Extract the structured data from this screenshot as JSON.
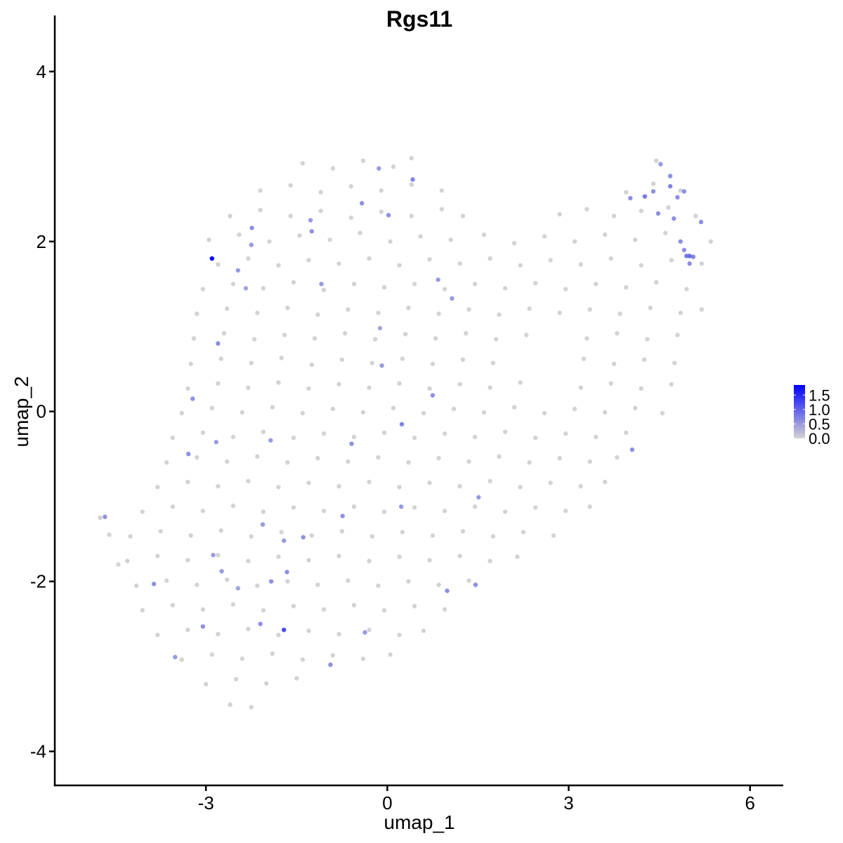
{
  "chart_data": {
    "type": "scatter",
    "title": "Rgs11",
    "xlabel": "umap_1",
    "ylabel": "umap_2",
    "xlim": [
      -5.5,
      6.55
    ],
    "ylim": [
      -4.4,
      4.66
    ],
    "xticks": [
      -3,
      0,
      3,
      6
    ],
    "yticks": [
      -4,
      -2,
      0,
      2,
      4
    ],
    "grid": false,
    "legend": {
      "placement": "right",
      "type": "colorbar",
      "ticks": [
        "0.0",
        "0.5",
        "1.0",
        "1.5"
      ],
      "tick_values": [
        0,
        0.5,
        1.0,
        1.5
      ],
      "range": [
        0,
        1.85
      ],
      "low_color": "#d3d3d3",
      "high_color": "#0000ff"
    },
    "zero_points": [
      [
        -1.4,
        2.92
      ],
      [
        -0.9,
        2.86
      ],
      [
        -0.4,
        2.95
      ],
      [
        0.1,
        2.88
      ],
      [
        0.4,
        2.98
      ],
      [
        4.45,
        2.95
      ],
      [
        -2.1,
        2.6
      ],
      [
        -1.6,
        2.66
      ],
      [
        -1.1,
        2.58
      ],
      [
        -0.6,
        2.65
      ],
      [
        -0.1,
        2.6
      ],
      [
        0.4,
        2.67
      ],
      [
        0.9,
        2.6
      ],
      [
        3.95,
        2.58
      ],
      [
        4.4,
        2.68
      ],
      [
        4.85,
        2.6
      ],
      [
        -2.6,
        2.3
      ],
      [
        -2.1,
        2.37
      ],
      [
        -1.6,
        2.3
      ],
      [
        -1.1,
        2.36
      ],
      [
        -0.6,
        2.28
      ],
      [
        -0.1,
        2.35
      ],
      [
        0.4,
        2.3
      ],
      [
        0.9,
        2.38
      ],
      [
        1.25,
        2.3
      ],
      [
        2.85,
        2.32
      ],
      [
        3.3,
        2.38
      ],
      [
        3.75,
        2.3
      ],
      [
        4.2,
        2.36
      ],
      [
        4.65,
        2.4
      ],
      [
        5.1,
        2.3
      ],
      [
        -2.95,
        2.02
      ],
      [
        -2.45,
        2.08
      ],
      [
        -1.95,
        2.0
      ],
      [
        -1.45,
        2.07
      ],
      [
        -0.95,
        2.02
      ],
      [
        -0.45,
        2.1
      ],
      [
        0.05,
        2.0
      ],
      [
        0.55,
        2.06
      ],
      [
        1.05,
        2.02
      ],
      [
        1.6,
        2.08
      ],
      [
        2.1,
        1.98
      ],
      [
        2.6,
        2.06
      ],
      [
        3.1,
        2.0
      ],
      [
        3.6,
        2.08
      ],
      [
        4.1,
        2.02
      ],
      [
        4.6,
        2.1
      ],
      [
        5.35,
        2.0
      ],
      [
        -2.8,
        1.73
      ],
      [
        -2.3,
        1.8
      ],
      [
        -1.8,
        1.72
      ],
      [
        -1.3,
        1.78
      ],
      [
        -0.8,
        1.74
      ],
      [
        -0.3,
        1.8
      ],
      [
        0.2,
        1.72
      ],
      [
        0.7,
        1.79
      ],
      [
        1.2,
        1.74
      ],
      [
        1.7,
        1.8
      ],
      [
        2.2,
        1.72
      ],
      [
        2.7,
        1.78
      ],
      [
        3.2,
        1.73
      ],
      [
        3.7,
        1.8
      ],
      [
        4.2,
        1.72
      ],
      [
        4.7,
        1.78
      ],
      [
        5.2,
        1.74
      ],
      [
        -3.05,
        1.44
      ],
      [
        -2.55,
        1.5
      ],
      [
        -2.05,
        1.45
      ],
      [
        -1.55,
        1.52
      ],
      [
        -1.05,
        1.43
      ],
      [
        -0.55,
        1.5
      ],
      [
        -0.05,
        1.46
      ],
      [
        0.45,
        1.5
      ],
      [
        0.95,
        1.44
      ],
      [
        1.45,
        1.5
      ],
      [
        1.95,
        1.45
      ],
      [
        2.45,
        1.51
      ],
      [
        2.95,
        1.44
      ],
      [
        3.45,
        1.5
      ],
      [
        3.95,
        1.46
      ],
      [
        4.45,
        1.52
      ],
      [
        4.95,
        1.44
      ],
      [
        -3.15,
        1.15
      ],
      [
        -2.65,
        1.21
      ],
      [
        -2.15,
        1.16
      ],
      [
        -1.65,
        1.22
      ],
      [
        -1.15,
        1.14
      ],
      [
        -0.65,
        1.2
      ],
      [
        -0.15,
        1.16
      ],
      [
        0.35,
        1.22
      ],
      [
        0.85,
        1.15
      ],
      [
        1.35,
        1.2
      ],
      [
        1.85,
        1.14
      ],
      [
        2.35,
        1.21
      ],
      [
        2.85,
        1.16
      ],
      [
        3.35,
        1.2
      ],
      [
        3.85,
        1.15
      ],
      [
        4.35,
        1.22
      ],
      [
        4.85,
        1.16
      ],
      [
        5.2,
        1.2
      ],
      [
        -3.2,
        0.86
      ],
      [
        -2.7,
        0.92
      ],
      [
        -2.2,
        0.85
      ],
      [
        -1.7,
        0.9
      ],
      [
        -1.2,
        0.86
      ],
      [
        -0.7,
        0.92
      ],
      [
        -0.2,
        0.85
      ],
      [
        0.3,
        0.91
      ],
      [
        0.8,
        0.86
      ],
      [
        1.3,
        0.92
      ],
      [
        1.8,
        0.85
      ],
      [
        2.3,
        0.9
      ],
      [
        3.3,
        0.86
      ],
      [
        3.8,
        0.92
      ],
      [
        4.3,
        0.85
      ],
      [
        4.8,
        0.9
      ],
      [
        -3.25,
        0.56
      ],
      [
        -2.75,
        0.62
      ],
      [
        -2.25,
        0.57
      ],
      [
        -1.75,
        0.63
      ],
      [
        -1.25,
        0.55
      ],
      [
        -0.75,
        0.61
      ],
      [
        -0.25,
        0.57
      ],
      [
        0.25,
        0.62
      ],
      [
        0.75,
        0.56
      ],
      [
        1.25,
        0.61
      ],
      [
        1.75,
        0.57
      ],
      [
        3.25,
        0.62
      ],
      [
        3.75,
        0.56
      ],
      [
        4.25,
        0.61
      ],
      [
        4.75,
        0.57
      ],
      [
        -3.3,
        0.27
      ],
      [
        -2.8,
        0.33
      ],
      [
        -2.3,
        0.28
      ],
      [
        -1.8,
        0.34
      ],
      [
        -1.3,
        0.27
      ],
      [
        -0.8,
        0.32
      ],
      [
        -0.3,
        0.28
      ],
      [
        0.2,
        0.33
      ],
      [
        0.7,
        0.27
      ],
      [
        1.2,
        0.32
      ],
      [
        1.7,
        0.28
      ],
      [
        2.2,
        0.34
      ],
      [
        3.2,
        0.28
      ],
      [
        3.7,
        0.33
      ],
      [
        4.2,
        0.27
      ],
      [
        4.7,
        0.32
      ],
      [
        -3.4,
        -0.02
      ],
      [
        -2.9,
        0.04
      ],
      [
        -2.4,
        -0.01
      ],
      [
        -1.9,
        0.05
      ],
      [
        -1.4,
        -0.02
      ],
      [
        -0.9,
        0.03
      ],
      [
        -0.4,
        -0.01
      ],
      [
        0.1,
        0.04
      ],
      [
        0.6,
        -0.02
      ],
      [
        1.1,
        0.03
      ],
      [
        1.6,
        -0.01
      ],
      [
        2.1,
        0.05
      ],
      [
        2.6,
        -0.02
      ],
      [
        3.1,
        0.03
      ],
      [
        3.6,
        -0.01
      ],
      [
        4.1,
        0.04
      ],
      [
        4.55,
        -0.02
      ],
      [
        -3.55,
        -0.31
      ],
      [
        -3.05,
        -0.25
      ],
      [
        -2.55,
        -0.3
      ],
      [
        -2.05,
        -0.24
      ],
      [
        -1.55,
        -0.31
      ],
      [
        -1.05,
        -0.26
      ],
      [
        -0.55,
        -0.3
      ],
      [
        -0.05,
        -0.25
      ],
      [
        0.45,
        -0.31
      ],
      [
        0.95,
        -0.26
      ],
      [
        1.45,
        -0.3
      ],
      [
        1.95,
        -0.24
      ],
      [
        2.45,
        -0.31
      ],
      [
        2.95,
        -0.26
      ],
      [
        3.45,
        -0.3
      ],
      [
        3.95,
        -0.25
      ],
      [
        -3.65,
        -0.6
      ],
      [
        -3.15,
        -0.54
      ],
      [
        -2.65,
        -0.59
      ],
      [
        -2.15,
        -0.53
      ],
      [
        -1.65,
        -0.6
      ],
      [
        -1.15,
        -0.55
      ],
      [
        -0.65,
        -0.59
      ],
      [
        -0.15,
        -0.54
      ],
      [
        0.35,
        -0.6
      ],
      [
        0.85,
        -0.55
      ],
      [
        1.35,
        -0.59
      ],
      [
        1.85,
        -0.53
      ],
      [
        2.35,
        -0.6
      ],
      [
        2.85,
        -0.55
      ],
      [
        3.35,
        -0.59
      ],
      [
        3.8,
        -0.54
      ],
      [
        -3.8,
        -0.89
      ],
      [
        -3.3,
        -0.83
      ],
      [
        -2.8,
        -0.88
      ],
      [
        -2.3,
        -0.82
      ],
      [
        -1.8,
        -0.89
      ],
      [
        -1.3,
        -0.84
      ],
      [
        -0.8,
        -0.88
      ],
      [
        -0.3,
        -0.83
      ],
      [
        0.2,
        -0.89
      ],
      [
        0.7,
        -0.84
      ],
      [
        1.2,
        -0.88
      ],
      [
        1.7,
        -0.82
      ],
      [
        2.2,
        -0.89
      ],
      [
        2.7,
        -0.84
      ],
      [
        3.2,
        -0.88
      ],
      [
        3.6,
        -0.83
      ],
      [
        -4.05,
        -1.18
      ],
      [
        -3.55,
        -1.12
      ],
      [
        -3.05,
        -1.17
      ],
      [
        -2.55,
        -1.11
      ],
      [
        -2.05,
        -1.18
      ],
      [
        -1.55,
        -1.13
      ],
      [
        -1.05,
        -1.17
      ],
      [
        -0.55,
        -1.12
      ],
      [
        -0.05,
        -1.18
      ],
      [
        0.45,
        -1.13
      ],
      [
        0.95,
        -1.17
      ],
      [
        1.45,
        -1.12
      ],
      [
        1.95,
        -1.18
      ],
      [
        2.45,
        -1.13
      ],
      [
        2.95,
        -1.17
      ],
      [
        3.35,
        -1.12
      ],
      [
        -4.25,
        -1.47
      ],
      [
        -3.75,
        -1.41
      ],
      [
        -3.25,
        -1.46
      ],
      [
        -2.75,
        -1.4
      ],
      [
        -2.25,
        -1.47
      ],
      [
        -1.75,
        -1.42
      ],
      [
        -1.25,
        -1.46
      ],
      [
        -0.75,
        -1.41
      ],
      [
        -0.25,
        -1.47
      ],
      [
        0.25,
        -1.42
      ],
      [
        0.75,
        -1.46
      ],
      [
        1.25,
        -1.41
      ],
      [
        1.75,
        -1.47
      ],
      [
        2.25,
        -1.42
      ],
      [
        2.75,
        -1.46
      ],
      [
        -4.3,
        -1.76
      ],
      [
        -3.8,
        -1.7
      ],
      [
        -3.3,
        -1.75
      ],
      [
        -2.8,
        -1.69
      ],
      [
        -2.3,
        -1.76
      ],
      [
        -1.8,
        -1.71
      ],
      [
        -1.3,
        -1.75
      ],
      [
        -0.8,
        -1.7
      ],
      [
        -0.3,
        -1.76
      ],
      [
        0.2,
        -1.71
      ],
      [
        0.7,
        -1.75
      ],
      [
        1.2,
        -1.7
      ],
      [
        1.7,
        -1.76
      ],
      [
        2.15,
        -1.71
      ],
      [
        -4.15,
        -2.05
      ],
      [
        -3.65,
        -1.99
      ],
      [
        -3.15,
        -2.04
      ],
      [
        -2.65,
        -1.98
      ],
      [
        -2.15,
        -2.05
      ],
      [
        -1.65,
        -2.0
      ],
      [
        -1.15,
        -2.04
      ],
      [
        -0.65,
        -1.99
      ],
      [
        -0.15,
        -2.05
      ],
      [
        0.35,
        -2.0
      ],
      [
        0.85,
        -2.04
      ],
      [
        1.35,
        -1.99
      ],
      [
        -4.05,
        -2.34
      ],
      [
        -3.55,
        -2.28
      ],
      [
        -3.05,
        -2.33
      ],
      [
        -2.55,
        -2.27
      ],
      [
        -2.05,
        -2.34
      ],
      [
        -1.55,
        -2.29
      ],
      [
        -1.05,
        -2.33
      ],
      [
        -0.55,
        -2.28
      ],
      [
        -0.05,
        -2.34
      ],
      [
        0.45,
        -2.29
      ],
      [
        0.95,
        -2.33
      ],
      [
        -3.8,
        -2.63
      ],
      [
        -3.3,
        -2.57
      ],
      [
        -2.8,
        -2.62
      ],
      [
        -2.3,
        -2.56
      ],
      [
        -1.8,
        -2.63
      ],
      [
        -1.3,
        -2.58
      ],
      [
        -0.8,
        -2.62
      ],
      [
        -0.3,
        -2.57
      ],
      [
        0.2,
        -2.63
      ],
      [
        0.6,
        -2.58
      ],
      [
        -3.4,
        -2.92
      ],
      [
        -2.9,
        -2.86
      ],
      [
        -2.4,
        -2.91
      ],
      [
        -1.9,
        -2.85
      ],
      [
        -1.4,
        -2.92
      ],
      [
        -0.9,
        -2.87
      ],
      [
        -0.4,
        -2.91
      ],
      [
        0.05,
        -2.86
      ],
      [
        -3.0,
        -3.21
      ],
      [
        -2.5,
        -3.15
      ],
      [
        -2.0,
        -3.2
      ],
      [
        -1.5,
        -3.14
      ],
      [
        -2.6,
        -3.45
      ],
      [
        -2.25,
        -3.48
      ],
      [
        -4.75,
        -1.25
      ],
      [
        -4.6,
        -1.45
      ],
      [
        -4.45,
        -1.8
      ]
    ],
    "expressing_points": [
      [
        -2.9,
        1.8,
        1.85
      ],
      [
        -2.24,
        2.16,
        0.6
      ],
      [
        -2.25,
        1.96,
        0.5
      ],
      [
        -2.47,
        1.66,
        0.5
      ],
      [
        -2.34,
        1.45,
        0.4
      ],
      [
        -2.8,
        0.8,
        0.6
      ],
      [
        -3.22,
        0.15,
        0.6
      ],
      [
        -3.29,
        -0.5,
        0.6
      ],
      [
        -2.83,
        -0.36,
        0.5
      ],
      [
        -1.93,
        -0.34,
        0.5
      ],
      [
        -4.67,
        -1.24,
        0.6
      ],
      [
        -3.86,
        -2.03,
        0.6
      ],
      [
        -2.88,
        -1.69,
        0.5
      ],
      [
        -2.74,
        -1.88,
        0.5
      ],
      [
        -2.47,
        -2.08,
        0.4
      ],
      [
        -2.06,
        -1.33,
        0.5
      ],
      [
        -1.71,
        -1.52,
        0.5
      ],
      [
        -1.39,
        -1.48,
        0.6
      ],
      [
        -1.92,
        -2.0,
        0.6
      ],
      [
        -1.66,
        -1.89,
        0.6
      ],
      [
        -3.05,
        -2.53,
        0.6
      ],
      [
        -2.1,
        -2.5,
        0.6
      ],
      [
        -1.71,
        -2.57,
        1.2
      ],
      [
        -3.51,
        -2.89,
        0.5
      ],
      [
        -0.94,
        -2.98,
        0.6
      ],
      [
        -0.37,
        -2.6,
        0.5
      ],
      [
        -0.74,
        -1.23,
        0.6
      ],
      [
        -0.59,
        -0.38,
        0.6
      ],
      [
        0.24,
        -0.15,
        0.7
      ],
      [
        0.23,
        -1.12,
        0.5
      ],
      [
        0.75,
        0.19,
        0.6
      ],
      [
        -0.09,
        0.54,
        0.5
      ],
      [
        -0.12,
        0.98,
        0.4
      ],
      [
        -1.25,
        2.12,
        0.6
      ],
      [
        -1.27,
        2.25,
        0.5
      ],
      [
        -1.09,
        1.5,
        0.5
      ],
      [
        -0.42,
        2.45,
        0.6
      ],
      [
        -0.14,
        2.86,
        0.5
      ],
      [
        0.02,
        2.31,
        0.6
      ],
      [
        0.42,
        2.73,
        0.7
      ],
      [
        0.84,
        1.55,
        0.5
      ],
      [
        1.07,
        1.33,
        0.5
      ],
      [
        1.51,
        -1.01,
        0.5
      ],
      [
        1.46,
        -2.04,
        0.6
      ],
      [
        0.99,
        -2.11,
        0.6
      ],
      [
        4.05,
        -0.45,
        0.6
      ],
      [
        4.02,
        2.51,
        0.6
      ],
      [
        4.26,
        2.53,
        0.8
      ],
      [
        4.4,
        2.59,
        0.6
      ],
      [
        4.48,
        2.33,
        0.6
      ],
      [
        4.52,
        2.91,
        0.5
      ],
      [
        4.68,
        2.77,
        0.6
      ],
      [
        4.68,
        2.65,
        0.7
      ],
      [
        4.8,
        2.52,
        0.6
      ],
      [
        4.91,
        2.59,
        0.6
      ],
      [
        4.74,
        2.27,
        0.6
      ],
      [
        4.85,
        2.0,
        0.6
      ],
      [
        4.91,
        1.9,
        0.6
      ],
      [
        5.0,
        1.83,
        0.9
      ],
      [
        4.95,
        1.83,
        0.8
      ],
      [
        5.06,
        1.82,
        0.7
      ],
      [
        5.0,
        1.74,
        0.6
      ],
      [
        5.19,
        2.23,
        0.6
      ]
    ]
  }
}
